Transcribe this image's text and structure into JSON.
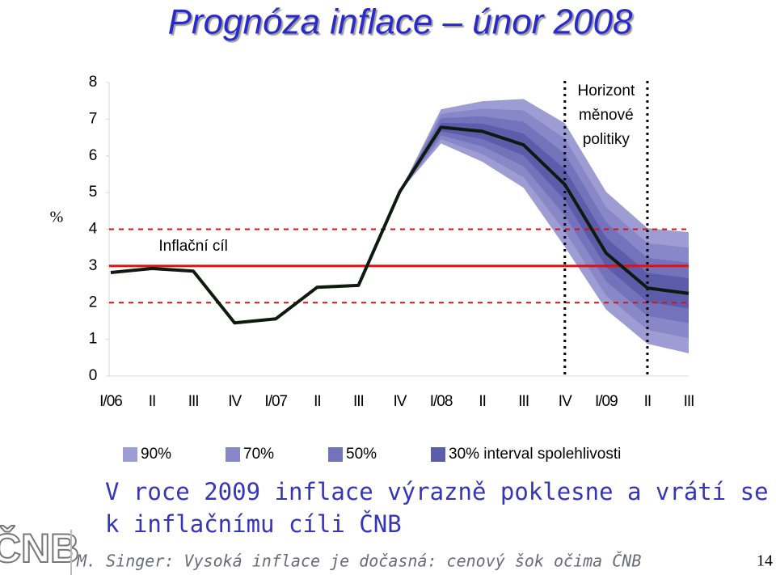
{
  "chart_data": {
    "type": "fan",
    "title": "Prognóza inflace – únor 2008",
    "ylabel": "%",
    "categories": [
      "I/06",
      "II",
      "III",
      "IV",
      "I/07",
      "II",
      "III",
      "IV",
      "I/08",
      "II",
      "III",
      "IV",
      "I/09",
      "II",
      "III"
    ],
    "values": [
      2.82,
      2.93,
      2.86,
      1.45,
      1.56,
      2.42,
      2.47,
      5.02,
      6.78,
      6.67,
      6.3,
      5.22,
      3.35,
      2.4,
      2.25
    ],
    "color": "#0d1a0d",
    "bands": [
      {
        "name": "90%",
        "color": "#9d9dd3",
        "upper": [
          null,
          null,
          null,
          null,
          null,
          null,
          null,
          5.02,
          7.27,
          7.49,
          7.55,
          6.89,
          5.02,
          4.03,
          3.92
        ],
        "lower": [
          null,
          null,
          null,
          null,
          null,
          null,
          null,
          5.02,
          6.34,
          5.84,
          5.13,
          3.52,
          1.81,
          0.88,
          0.62
        ]
      },
      {
        "name": "70%",
        "color": "#8888c9",
        "upper": [
          null,
          null,
          null,
          null,
          null,
          null,
          null,
          5.02,
          7.15,
          7.29,
          7.24,
          6.47,
          4.6,
          3.62,
          3.5
        ],
        "lower": [
          null,
          null,
          null,
          null,
          null,
          null,
          null,
          5.02,
          6.45,
          6.05,
          5.42,
          3.94,
          2.19,
          1.26,
          1.03
        ]
      },
      {
        "name": "50%",
        "color": "#7373bc",
        "upper": [
          null,
          null,
          null,
          null,
          null,
          null,
          null,
          5.02,
          7.03,
          7.08,
          6.93,
          6.06,
          4.19,
          3.22,
          3.09
        ],
        "lower": [
          null,
          null,
          null,
          null,
          null,
          null,
          null,
          5.02,
          6.56,
          6.26,
          5.72,
          4.37,
          2.58,
          1.64,
          1.44
        ]
      },
      {
        "name": "30% interval spolehlivosti",
        "color": "#5c5caa",
        "upper": [
          null,
          null,
          null,
          null,
          null,
          null,
          null,
          5.02,
          6.9,
          6.88,
          6.61,
          5.64,
          3.77,
          2.81,
          2.67
        ],
        "lower": [
          null,
          null,
          null,
          null,
          null,
          null,
          null,
          5.02,
          6.67,
          6.46,
          6.01,
          4.8,
          2.97,
          2.02,
          1.84
        ]
      }
    ],
    "target": {
      "label": "Inflační cíl",
      "value": 3,
      "range": [
        2,
        4
      ],
      "color": "#e01010"
    },
    "horizon": {
      "text": [
        "Horizont",
        "měnové",
        "politiky"
      ],
      "at": [
        11,
        13
      ]
    },
    "ylim": [
      0,
      8
    ],
    "yticks": [
      0,
      1,
      2,
      3,
      4,
      5,
      6,
      7,
      8
    ]
  },
  "slide": {
    "message": [
      "V roce 2009 inflace výrazně poklesne a vrátí se",
      "k inflačnímu cíli ČNB"
    ],
    "logo": "ČNB",
    "footer": "M. Singer: Vysoká inflace je dočasná: cenový šok očima ČNB",
    "page": "14"
  }
}
